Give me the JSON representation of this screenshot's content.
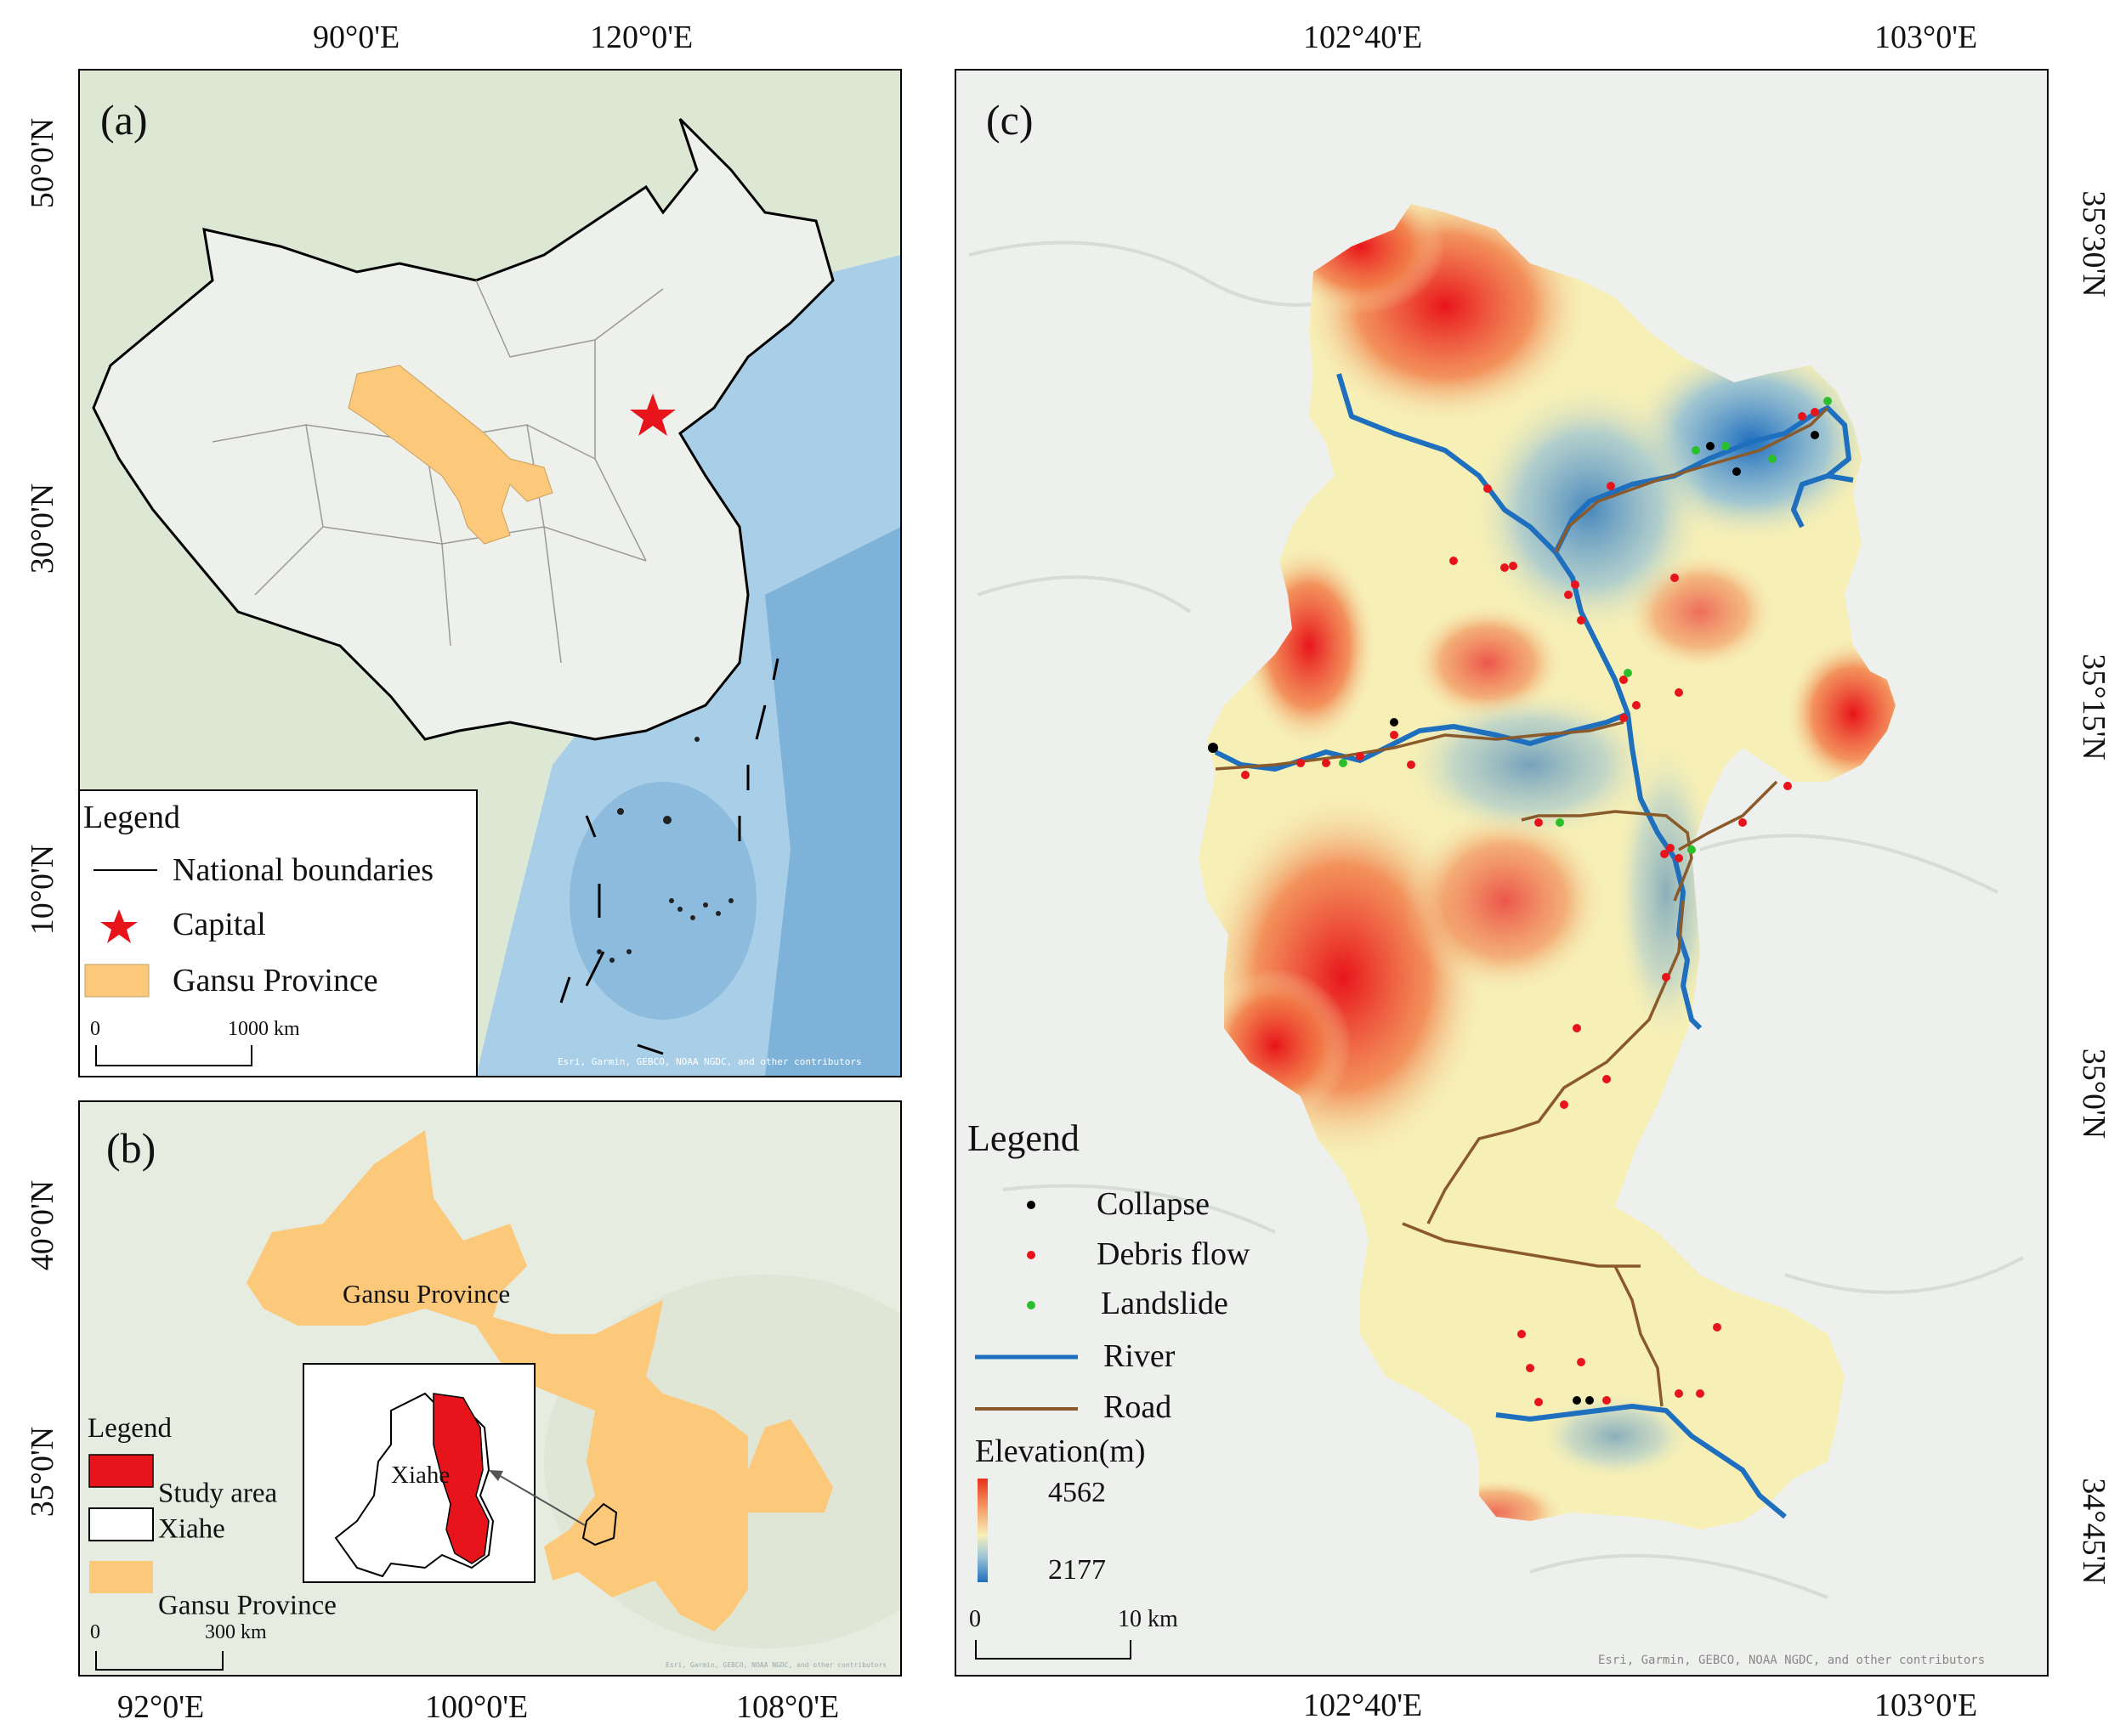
{
  "panel_a": {
    "letter": "(a)",
    "top_ticks": [
      "90°0'E",
      "120°0'E"
    ],
    "left_ticks": [
      "50°0'N",
      "30°0'N",
      "10°0'N"
    ],
    "legend": {
      "title": "Legend",
      "items": [
        {
          "symbol": "line",
          "label": "National boundaries"
        },
        {
          "symbol": "star",
          "label": "Capital"
        },
        {
          "symbol": "patch",
          "label": "Gansu Province"
        }
      ]
    },
    "scale": {
      "start": "0",
      "end": "1000 km"
    },
    "attribution": "Esri, Garmin, GEBCO, NOAA NGDC, and other contributors"
  },
  "panel_b": {
    "letter": "(b)",
    "bottom_ticks": [
      "92°0'E",
      "100°0'E",
      "108°0'E"
    ],
    "left_ticks": [
      "40°0'N",
      "35°0'N"
    ],
    "province_label": "Gansu Province",
    "inset_label": "Xiahe",
    "legend": {
      "title": "Legend",
      "items": [
        {
          "symbol": "red-patch",
          "label": "Study area"
        },
        {
          "symbol": "outline-patch",
          "label": "Xiahe"
        },
        {
          "symbol": "patch",
          "label": "Gansu Province"
        }
      ]
    },
    "scale": {
      "start": "0",
      "end": "300 km"
    },
    "attribution": "Esri, Garmin, GEBCO, NOAA NGDC, and other contributors"
  },
  "panel_c": {
    "letter": "(c)",
    "top_ticks": [
      "102°40'E",
      "103°0'E"
    ],
    "bottom_ticks": [
      "102°40'E",
      "103°0'E"
    ],
    "right_ticks": [
      "35°30'N",
      "35°15'N",
      "35°0'N",
      "34°45'N"
    ],
    "legend": {
      "title": "Legend",
      "items": [
        {
          "symbol": "black-dot",
          "label": "Collapse"
        },
        {
          "symbol": "red-dot",
          "label": "Debris flow"
        },
        {
          "symbol": "green-dot",
          "label": "Landslide"
        },
        {
          "symbol": "blue-line",
          "label": "River"
        },
        {
          "symbol": "brown-line",
          "label": "Road"
        }
      ],
      "elevation_title": "Elevation(m)",
      "elevation_high": "4562",
      "elevation_low": "2177"
    },
    "scale": {
      "start": "0",
      "end": "10 km"
    },
    "attribution": "Esri, Garmin, GEBCO, NOAA NGDC, and other contributors"
  },
  "colors": {
    "gansu": "#fcc87a",
    "study_area": "#e8141b",
    "collapse": "#000000",
    "debris_flow": "#e8141b",
    "landslide": "#2bbf2b",
    "river": "#1f6fbf",
    "road": "#8b5a2b",
    "elev_high": "#e8141b",
    "elev_low": "#1f6fbf"
  }
}
